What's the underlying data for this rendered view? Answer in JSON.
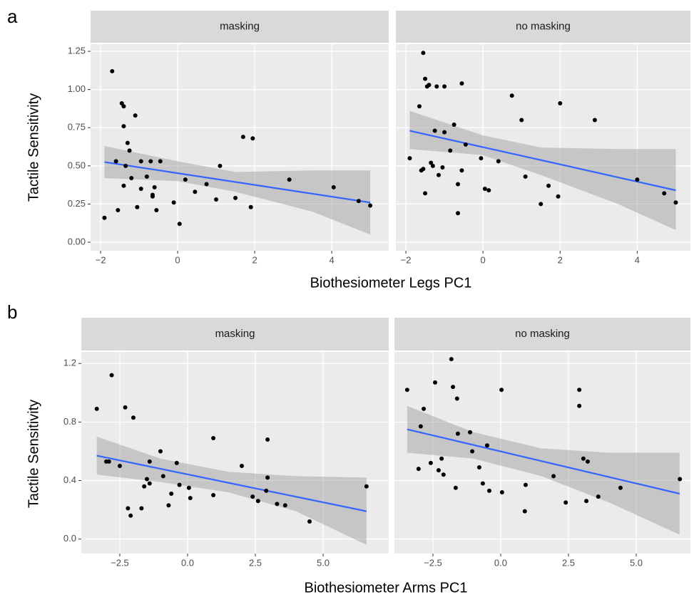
{
  "chart_data": [
    {
      "type": "scatter",
      "panel_label": "a",
      "ylabel": "Tactile Sensitivity",
      "xlabel": "Biothesiometer Legs PC1",
      "title": "masking",
      "x": [
        -1.9,
        -1.7,
        -1.6,
        -1.55,
        -1.45,
        -1.4,
        -1.4,
        -1.35,
        -1.3,
        -1.25,
        -1.2,
        -1.1,
        -1.05,
        -0.95,
        -0.95,
        -0.7,
        -0.65,
        -0.65,
        -0.8,
        -0.55,
        -0.6,
        -0.45,
        -0.1,
        0.05,
        0.2,
        0.45,
        0.75,
        1.0,
        1.1,
        1.5,
        1.7,
        1.9,
        1.95,
        2.9,
        4.05,
        4.7,
        5.0,
        -1.4
      ],
      "y": [
        0.16,
        1.12,
        0.53,
        0.21,
        0.91,
        0.89,
        0.76,
        0.5,
        0.65,
        0.6,
        0.42,
        0.83,
        0.23,
        0.53,
        0.35,
        0.53,
        0.31,
        0.3,
        0.43,
        0.21,
        0.36,
        0.53,
        0.26,
        0.12,
        0.41,
        0.33,
        0.38,
        0.28,
        0.5,
        0.29,
        0.69,
        0.23,
        0.68,
        0.41,
        0.36,
        0.27,
        0.24,
        0.37
      ],
      "fit": {
        "x": [
          -1.9,
          5.0
        ],
        "y": [
          0.525,
          0.26
        ]
      },
      "band": {
        "x": [
          -1.9,
          0,
          1.5,
          3.5,
          5.0
        ],
        "lower": [
          0.42,
          0.4,
          0.33,
          0.2,
          0.05
        ],
        "upper": [
          0.63,
          0.53,
          0.46,
          0.47,
          0.47
        ]
      },
      "xlim": [
        -2.26,
        5.48
      ],
      "ylim": [
        -0.056,
        1.297
      ],
      "xticks": [
        {
          "value": -2,
          "label": "−2"
        },
        0,
        2,
        4
      ],
      "yticks": [
        {
          "value": 0,
          "label": "0.00"
        },
        0.25,
        {
          "value": 0.5,
          "label": "0.50"
        },
        0.75,
        {
          "value": 1,
          "label": "1.00"
        },
        1.25
      ],
      "point_color": "#000000",
      "fit_color": "#3366ff",
      "band_color": "#999999"
    },
    {
      "type": "scatter",
      "title": "no masking",
      "x": [
        -1.9,
        -1.65,
        -1.6,
        -1.55,
        -1.55,
        -1.5,
        -1.45,
        -1.4,
        -1.5,
        -1.35,
        -1.3,
        -1.25,
        -1.2,
        -1.15,
        -1.05,
        -1.0,
        -1.0,
        -0.85,
        -0.75,
        -0.65,
        -0.65,
        -0.55,
        -0.55,
        -0.45,
        -0.05,
        0.05,
        0.15,
        0.4,
        0.75,
        1.0,
        1.1,
        1.5,
        1.7,
        1.95,
        2.0,
        2.9,
        4.0,
        4.7,
        5.0
      ],
      "y": [
        0.55,
        0.89,
        0.47,
        0.48,
        1.24,
        1.07,
        1.02,
        1.03,
        0.32,
        0.52,
        0.5,
        0.73,
        1.02,
        0.44,
        0.49,
        1.02,
        0.72,
        0.6,
        0.77,
        0.19,
        0.38,
        1.04,
        0.47,
        0.64,
        0.55,
        0.35,
        0.34,
        0.53,
        0.96,
        0.8,
        0.43,
        0.25,
        0.37,
        0.3,
        0.91,
        0.8,
        0.41,
        0.32,
        0.26
      ],
      "fit": {
        "x": [
          -1.9,
          5.0
        ],
        "y": [
          0.73,
          0.34
        ]
      },
      "band": {
        "x": [
          -1.9,
          0,
          1.5,
          3.5,
          5.0
        ],
        "lower": [
          0.61,
          0.57,
          0.44,
          0.25,
          0.08
        ],
        "upper": [
          0.86,
          0.7,
          0.62,
          0.61,
          0.61
        ]
      },
      "xlim": [
        -2.26,
        5.38
      ],
      "ylim": [
        -0.056,
        1.297
      ],
      "xticks": [
        {
          "value": -2,
          "label": "−2"
        },
        0,
        2,
        4
      ],
      "yticks": [
        0,
        0.25,
        0.5,
        0.75,
        1,
        1.25
      ],
      "point_color": "#000000",
      "fit_color": "#3366ff",
      "band_color": "#999999"
    },
    {
      "type": "scatter",
      "panel_label": "b",
      "ylabel": "Tactile Sensitivity",
      "xlabel": "Biothesiometer Arms PC1",
      "title": "masking",
      "x": [
        -3.35,
        -3.0,
        -2.9,
        -2.8,
        -2.5,
        -2.3,
        -2.2,
        -2.1,
        -2.0,
        -1.7,
        -1.6,
        -1.5,
        -1.4,
        -1.4,
        -1.0,
        -0.9,
        -0.7,
        -0.6,
        -0.4,
        -0.3,
        0.05,
        0.1,
        0.95,
        0.95,
        2.0,
        2.4,
        2.6,
        2.9,
        2.95,
        2.95,
        3.3,
        3.6,
        4.5,
        6.6
      ],
      "y": [
        0.89,
        0.53,
        0.53,
        1.12,
        0.5,
        0.9,
        0.21,
        0.16,
        0.83,
        0.21,
        0.36,
        0.41,
        0.53,
        0.38,
        0.6,
        0.43,
        0.23,
        0.31,
        0.52,
        0.37,
        0.35,
        0.28,
        0.3,
        0.69,
        0.5,
        0.29,
        0.26,
        0.33,
        0.42,
        0.68,
        0.24,
        0.23,
        0.12,
        0.36
      ],
      "fit": {
        "x": [
          -3.35,
          6.6
        ],
        "y": [
          0.57,
          0.19
        ]
      },
      "band": {
        "x": [
          -3.35,
          -1,
          1.5,
          4,
          6.6
        ],
        "lower": [
          0.44,
          0.39,
          0.32,
          0.19,
          -0.04
        ],
        "upper": [
          0.7,
          0.55,
          0.46,
          0.43,
          0.42
        ]
      },
      "xlim": [
        -3.92,
        7.42
      ],
      "ylim": [
        -0.099,
        1.279
      ],
      "xticks": [
        {
          "value": -2.5,
          "label": "−2.5"
        },
        {
          "value": 0,
          "label": "0.0"
        },
        2.5,
        {
          "value": 5,
          "label": "5.0"
        }
      ],
      "yticks": [
        {
          "value": 0,
          "label": "0.0"
        },
        0.4,
        0.8,
        1.2
      ],
      "point_color": "#000000",
      "fit_color": "#3366ff",
      "band_color": "#999999"
    },
    {
      "type": "scatter",
      "title": "no masking",
      "x": [
        -3.45,
        -3.03,
        -2.95,
        -2.84,
        -2.58,
        -2.42,
        -2.29,
        -2.18,
        -2.11,
        -1.82,
        -1.76,
        -1.66,
        -1.61,
        -1.58,
        -1.13,
        -1.05,
        -0.79,
        -0.66,
        -0.5,
        -0.42,
        0.03,
        0.05,
        0.92,
        0.89,
        1.95,
        2.4,
        3.05,
        3.21,
        2.9,
        2.9,
        3.16,
        3.6,
        4.42,
        6.61
      ],
      "y": [
        1.02,
        0.48,
        0.77,
        0.89,
        0.52,
        1.07,
        0.47,
        0.55,
        0.44,
        1.23,
        1.04,
        0.35,
        0.96,
        0.72,
        0.73,
        0.6,
        0.49,
        0.38,
        0.64,
        0.33,
        1.02,
        0.32,
        0.37,
        0.19,
        0.43,
        0.25,
        0.55,
        0.53,
        1.02,
        0.91,
        0.26,
        0.29,
        0.35,
        0.41
      ],
      "fit": {
        "x": [
          -3.45,
          6.6
        ],
        "y": [
          0.75,
          0.31
        ]
      },
      "band": {
        "x": [
          -3.45,
          -1,
          1.5,
          4,
          6.6
        ],
        "lower": [
          0.59,
          0.55,
          0.43,
          0.25,
          0.03
        ],
        "upper": [
          0.91,
          0.73,
          0.62,
          0.59,
          0.59
        ]
      },
      "xlim": [
        -3.92,
        7.0
      ],
      "ylim": [
        -0.099,
        1.279
      ],
      "xticks": [
        {
          "value": -2.5,
          "label": "−2.5"
        },
        {
          "value": 0,
          "label": "0.0"
        },
        2.5,
        {
          "value": 5,
          "label": "5.0"
        }
      ],
      "yticks": [
        {
          "value": 0,
          "label": "0.0"
        },
        0.4,
        0.8,
        1.2
      ],
      "point_color": "#000000",
      "fit_color": "#3366ff",
      "band_color": "#999999"
    }
  ]
}
